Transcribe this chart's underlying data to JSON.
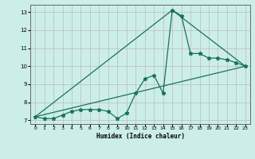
{
  "xlabel": "Humidex (Indice chaleur)",
  "bg_color": "#cceee8",
  "grid_color": "#bbbbbb",
  "line_color": "#1a7060",
  "xlim": [
    -0.5,
    23.5
  ],
  "ylim": [
    6.8,
    13.4
  ],
  "yticks": [
    7,
    8,
    9,
    10,
    11,
    12,
    13
  ],
  "xticks": [
    0,
    1,
    2,
    3,
    4,
    5,
    6,
    7,
    8,
    9,
    10,
    11,
    12,
    13,
    14,
    15,
    16,
    17,
    18,
    19,
    20,
    21,
    22,
    23
  ],
  "series1_x": [
    0,
    1,
    2,
    3,
    4,
    5,
    6,
    7,
    8,
    9,
    10,
    11,
    12,
    13,
    14,
    15,
    16,
    17,
    18,
    19,
    20,
    21,
    22,
    23
  ],
  "series1_y": [
    7.2,
    7.1,
    7.1,
    7.3,
    7.5,
    7.6,
    7.6,
    7.6,
    7.5,
    7.1,
    7.4,
    8.5,
    9.3,
    9.5,
    8.5,
    13.1,
    12.8,
    10.7,
    10.7,
    10.45,
    10.45,
    10.35,
    10.2,
    10.0
  ],
  "series2_x": [
    0,
    23
  ],
  "series2_y": [
    7.2,
    10.0
  ],
  "series3_x": [
    0,
    15,
    23
  ],
  "series3_y": [
    7.2,
    13.1,
    10.0
  ],
  "marker_size": 2.5,
  "line_width": 0.9
}
